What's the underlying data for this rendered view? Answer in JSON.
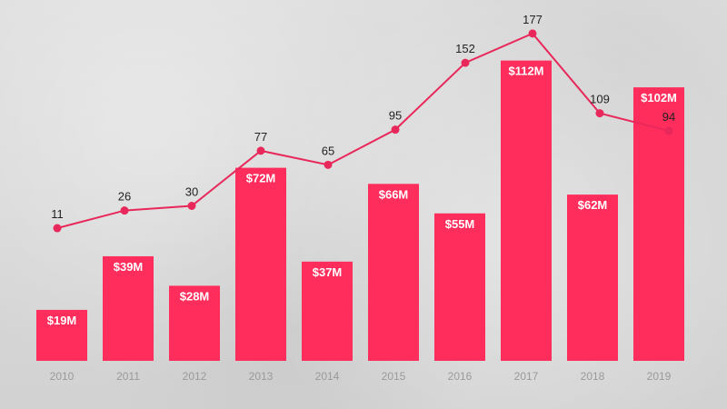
{
  "chart_data": {
    "type": "bar",
    "categories": [
      "2010",
      "2011",
      "2012",
      "2013",
      "2014",
      "2015",
      "2016",
      "2017",
      "2018",
      "2019"
    ],
    "series": [
      {
        "type": "bar",
        "values": [
          19,
          39,
          28,
          72,
          37,
          66,
          55,
          112,
          62,
          102
        ],
        "labels": [
          "$19M",
          "$39M",
          "$28M",
          "$72M",
          "$37M",
          "$66M",
          "$55M",
          "$112M",
          "$62M",
          "$102M"
        ],
        "color": "#ff2d5c"
      },
      {
        "type": "line",
        "values": [
          11,
          26,
          30,
          77,
          65,
          95,
          152,
          177,
          109,
          94
        ],
        "labels": [
          "11",
          "26",
          "30",
          "77",
          "65",
          "95",
          "152",
          "177",
          "109",
          "94"
        ],
        "color": "#e8285a"
      }
    ],
    "title": "",
    "xlabel": "",
    "ylabel": "",
    "grid": false,
    "legend": "none"
  }
}
